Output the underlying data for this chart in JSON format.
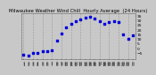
{
  "title": "Milwaukee Weather Wind Chill  Hourly Average  (24 Hours)",
  "title_fontsize": 3.8,
  "hours": [
    0,
    1,
    2,
    3,
    4,
    5,
    6,
    7,
    8,
    9,
    10,
    11,
    12,
    13,
    14,
    15,
    16,
    17,
    18,
    19,
    20,
    21,
    22,
    23
  ],
  "wind_chill": [
    -7,
    -8,
    -5,
    -5,
    -4,
    -4,
    -3,
    8,
    16,
    22,
    26,
    29,
    31,
    33,
    34,
    32,
    29,
    26,
    28,
    29,
    28,
    15,
    10,
    14
  ],
  "x_labels_top": [
    "1",
    "2",
    "3",
    "4",
    "5",
    "6",
    "7",
    "8",
    "9",
    "10",
    "11",
    "12",
    "13",
    "14",
    "15",
    "16",
    "17",
    "18",
    "19",
    "20",
    "21",
    "22",
    "23",
    "0"
  ],
  "x_labels_bot": [
    "1",
    "2",
    "3",
    "4",
    "5",
    "6",
    "7",
    "8",
    "9",
    "10",
    "11",
    "12",
    "13",
    "14",
    "15",
    "16",
    "17",
    "18",
    "19",
    "20",
    "21",
    "22",
    "23",
    "0"
  ],
  "y_ticks": [
    -5,
    0,
    5,
    10,
    15,
    20,
    25,
    30,
    35
  ],
  "y_min": -12,
  "y_max": 38,
  "dot_color": "#0000dd",
  "dot_size": 1.8,
  "grid_color": "#999999",
  "bg_color": "#c8c8c8",
  "plot_bg": "#c8c8c8",
  "tick_fontsize": 3.0,
  "ytick_fontsize": 3.2
}
